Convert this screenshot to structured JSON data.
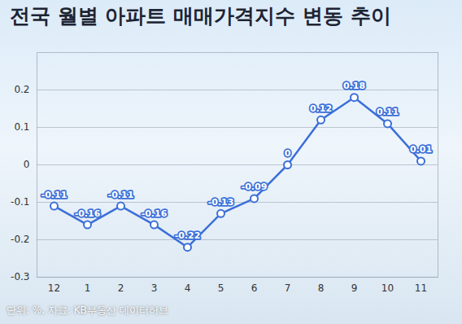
{
  "chart_data": {
    "type": "line",
    "title": "전국 월별 아파트 매매가격지수 변동 추이",
    "caption": "단위: %, 자료: KB부동산 데이터허브",
    "categories": [
      "12",
      "1",
      "2",
      "3",
      "4",
      "5",
      "6",
      "7",
      "8",
      "9",
      "10",
      "11"
    ],
    "values": [
      -0.11,
      -0.16,
      -0.11,
      -0.16,
      -0.22,
      -0.13,
      -0.09,
      0,
      0.12,
      0.18,
      0.11,
      0.01
    ],
    "color": "#3b6fd8",
    "marker": "circle",
    "ylim": [
      -0.3,
      0.3
    ],
    "yticks": [
      -0.3,
      -0.2,
      -0.1,
      0,
      0.1,
      0.2
    ],
    "grid": true,
    "data_labels": true
  }
}
